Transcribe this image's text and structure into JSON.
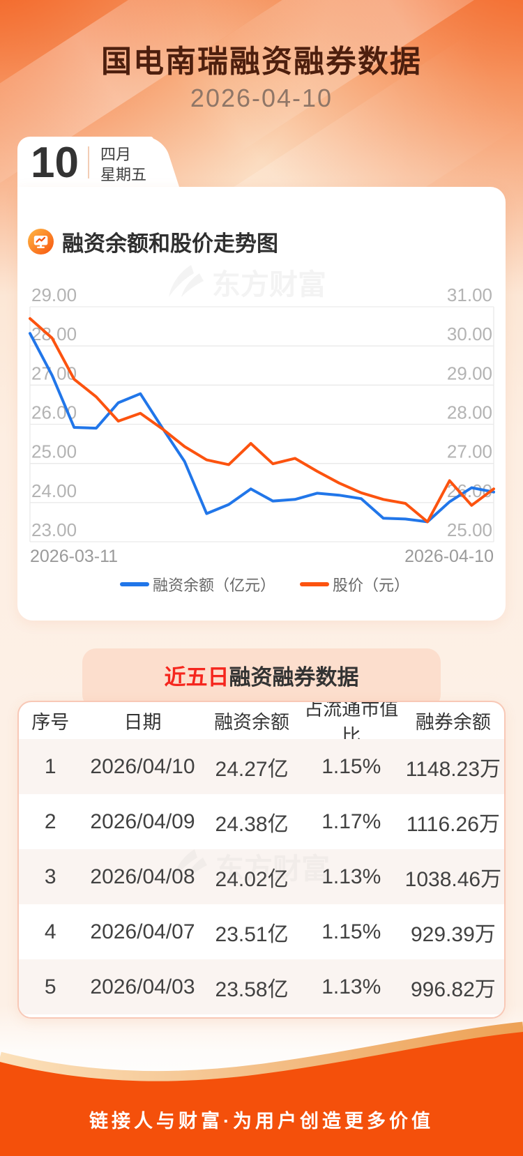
{
  "header": {
    "title": "国电南瑞融资融券数据",
    "date": "2026-04-10"
  },
  "calendar": {
    "day": "10",
    "month": "四月",
    "weekday": "星期五"
  },
  "chart_section": {
    "title": "融资余额和股价走势图"
  },
  "watermark": "东方财富",
  "chart_data": {
    "type": "line",
    "x": [
      "03-11",
      "03-12",
      "03-13",
      "03-16",
      "03-17",
      "03-18",
      "03-19",
      "03-20",
      "03-23",
      "03-24",
      "03-25",
      "03-26",
      "03-27",
      "03-30",
      "03-31",
      "04-01",
      "04-02",
      "04-03",
      "04-07",
      "04-08",
      "04-09",
      "04-10"
    ],
    "x_axis_labels": [
      "2026-03-11",
      "2026-04-10"
    ],
    "series": [
      {
        "name": "融资余额（亿元）",
        "axis": "left",
        "color": "#2176e9",
        "values": [
          28.32,
          27.25,
          25.92,
          25.9,
          26.55,
          26.78,
          25.9,
          25.05,
          23.72,
          23.95,
          24.35,
          24.04,
          24.08,
          24.24,
          24.19,
          24.1,
          23.6,
          23.58,
          23.51,
          24.02,
          24.38,
          24.27
        ]
      },
      {
        "name": "股价（元）",
        "axis": "right",
        "color": "#fc530f",
        "values": [
          30.7,
          30.2,
          29.15,
          28.7,
          28.08,
          28.28,
          27.88,
          27.43,
          27.09,
          26.97,
          27.51,
          26.99,
          27.13,
          26.8,
          26.5,
          26.25,
          26.08,
          25.98,
          25.51,
          26.56,
          25.93,
          26.35
        ]
      }
    ],
    "left_axis": {
      "min": 23,
      "max": 29,
      "ticks": [
        "29.00",
        "28.00",
        "27.00",
        "26.00",
        "25.00",
        "24.00",
        "23.00"
      ]
    },
    "right_axis": {
      "min": 25,
      "max": 31,
      "ticks": [
        "31.00",
        "30.00",
        "29.00",
        "28.00",
        "27.00",
        "26.00",
        "25.00"
      ]
    },
    "grid": true,
    "legend_position": "bottom",
    "title": "融资余额和股价走势图"
  },
  "table_section": {
    "title_highlight": "近五日",
    "title_rest": "融资融券数据",
    "columns": [
      "序号",
      "日期",
      "融资余额",
      "占流通市值比",
      "融券余额"
    ],
    "rows": [
      [
        "1",
        "2026/04/10",
        "24.27亿",
        "1.15%",
        "1148.23万"
      ],
      [
        "2",
        "2026/04/09",
        "24.38亿",
        "1.17%",
        "1116.26万"
      ],
      [
        "3",
        "2026/04/08",
        "24.02亿",
        "1.13%",
        "1038.46万"
      ],
      [
        "4",
        "2026/04/07",
        "23.51亿",
        "1.15%",
        "929.39万"
      ],
      [
        "5",
        "2026/04/03",
        "23.58亿",
        "1.13%",
        "996.82万"
      ]
    ]
  },
  "footer": {
    "slogan": "链接人与财富·为用户创造更多价值"
  },
  "colors": {
    "line_blue": "#2176e9",
    "line_orange": "#fc530f",
    "footer_orange": "#f4500b",
    "title_maroon": "#4d1f0e",
    "highlight_red": "#f5261d",
    "badge_bg": "#fcdecd"
  }
}
